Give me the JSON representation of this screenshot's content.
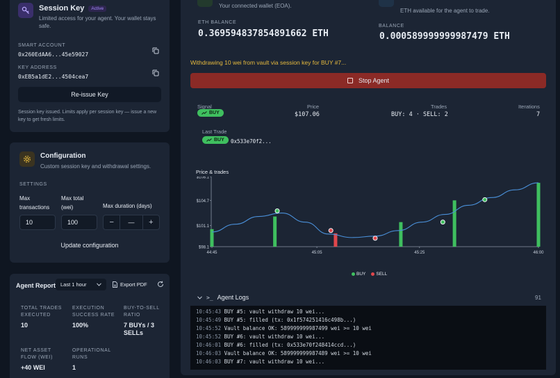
{
  "session": {
    "title": "Session Key",
    "status": "Active",
    "subtitle": "Limited access for your agent. Your wallet stays safe.",
    "smart_account_label": "SMART ACCOUNT",
    "smart_account": "0x260EdAA6...45e59027",
    "key_address_label": "KEY ADDRESS",
    "key_address": "0xEB5a1dE2...4504cea7",
    "reissue_label": "Re-issue Key",
    "note": "Session key issued. Limits apply per session key — issue a new key to get fresh limits."
  },
  "config": {
    "title": "Configuration",
    "subtitle": "Custom session key and withdrawal settings.",
    "settings_label": "SETTINGS",
    "max_tx_label": "Max transactions",
    "max_total_label": "Max total (wei)",
    "max_duration_label": "Max duration (days)",
    "max_tx_value": "10",
    "max_total_value": "100",
    "duration_value": "—",
    "minus": "−",
    "plus": "+",
    "update_label": "Update configuration"
  },
  "report": {
    "title": "Agent Report",
    "period": "Last 1 hour",
    "export_label": "Export PDF",
    "stats": [
      {
        "label": "TOTAL TRADES EXECUTED",
        "value": "10"
      },
      {
        "label": "EXECUTION SUCCESS RATE",
        "value": "100%"
      },
      {
        "label": "BUY-TO-SELL RATIO",
        "value": "7 BUYs / 3 SELLs"
      },
      {
        "label": "NET ASSET FLOW (WEI)",
        "value": "+40 WEI"
      },
      {
        "label": "OPERATIONAL RUNS",
        "value": "1"
      }
    ]
  },
  "wallet": {
    "connected_note": "Your connected wallet (EOA).",
    "eth_note": "ETH available for the agent to trade.",
    "eth_balance_label": "ETH BALANCE",
    "eth_balance_value": "0.369594837854891662 ETH",
    "balance_label": "BALANCE",
    "balance_value": "0.000589999999987479 ETH"
  },
  "agent": {
    "status_message": "Withdrawing 10 wei from vault via session key for BUY #7...",
    "stop_label": "Stop Agent",
    "signal_label": "Signal",
    "signal_value": "BUY",
    "price_label": "Price",
    "price_value": "$107.06",
    "trades_label": "Trades",
    "trades_value": "BUY: 4 · SELL: 2",
    "iterations_label": "Iterations",
    "iterations_value": "7",
    "last_trade_label": "Last Trade",
    "last_trade_badge": "BUY",
    "last_trade_tx": "0x533e70f2..."
  },
  "chart_title": "Price & trades",
  "chart_data": {
    "type": "line",
    "yticks": [
      "$108.1",
      "$104.7",
      "$101.1",
      "$98.1"
    ],
    "xticks": [
      "44:45",
      "45:05",
      "45:25",
      "46:00"
    ],
    "ylim": [
      98.1,
      108.1
    ],
    "price_curve": [
      {
        "t": 0,
        "y": 100.2
      },
      {
        "t": 10,
        "y": 101.3
      },
      {
        "t": 20,
        "y": 102.4
      },
      {
        "t": 30,
        "y": 102.9
      },
      {
        "t": 40,
        "y": 101.6
      },
      {
        "t": 50,
        "y": 99.9
      },
      {
        "t": 60,
        "y": 99.4
      },
      {
        "t": 70,
        "y": 99.6
      },
      {
        "t": 80,
        "y": 100.4
      },
      {
        "t": 90,
        "y": 101.6
      },
      {
        "t": 100,
        "y": 102.7
      },
      {
        "t": 110,
        "y": 104.0
      },
      {
        "t": 120,
        "y": 105.1
      },
      {
        "t": 130,
        "y": 106.2
      },
      {
        "t": 140,
        "y": 107.2
      }
    ],
    "xlim": [
      0,
      140
    ],
    "bars": [
      {
        "t": 0,
        "y": 100.6,
        "kind": "buy"
      },
      {
        "t": 27,
        "y": 102.4,
        "kind": "buy"
      },
      {
        "t": 53,
        "y": 100.0,
        "kind": "sell"
      },
      {
        "t": 81,
        "y": 101.6,
        "kind": "buy"
      },
      {
        "t": 104,
        "y": 104.7,
        "kind": "buy"
      },
      {
        "t": 140,
        "y": 107.2,
        "kind": "buy"
      }
    ],
    "points": [
      {
        "t": 28,
        "y": 103.2,
        "kind": "buy"
      },
      {
        "t": 51,
        "y": 100.4,
        "kind": "sell"
      },
      {
        "t": 70,
        "y": 99.3,
        "kind": "sell"
      },
      {
        "t": 99,
        "y": 101.6,
        "kind": "buy"
      },
      {
        "t": 117,
        "y": 104.8,
        "kind": "buy"
      }
    ],
    "legend": [
      {
        "name": "BUY",
        "color": "#3fbf5f"
      },
      {
        "name": "SELL",
        "color": "#e0474c"
      }
    ],
    "legend_position": "bottom",
    "colors": {
      "line": "#4a90d9",
      "buy": "#3fbf5f",
      "sell": "#e0474c",
      "grid": "#2a3445"
    }
  },
  "logs": {
    "title": "Agent Logs",
    "count": "91",
    "lines": [
      {
        "time": "10:45:43",
        "text": "BUY #5: vault withdraw 10 wei..."
      },
      {
        "time": "10:45:49",
        "text": "BUY #5: filled (tx: 0x1f574251416c498b...)"
      },
      {
        "time": "10:45:52",
        "text": "Vault balance OK: 589999999987499 wei >= 10 wei"
      },
      {
        "time": "10:45:52",
        "text": "BUY #6: vault withdraw 10 wei..."
      },
      {
        "time": "10:46:01",
        "text": "BUY #6: filled (tx: 0x533e70f248414ccd...)"
      },
      {
        "time": "10:46:03",
        "text": "Vault balance OK: 589999999987489 wei >= 10 wei"
      },
      {
        "time": "10:46:03",
        "text": "BUY #7: vault withdraw 10 wei..."
      }
    ]
  }
}
